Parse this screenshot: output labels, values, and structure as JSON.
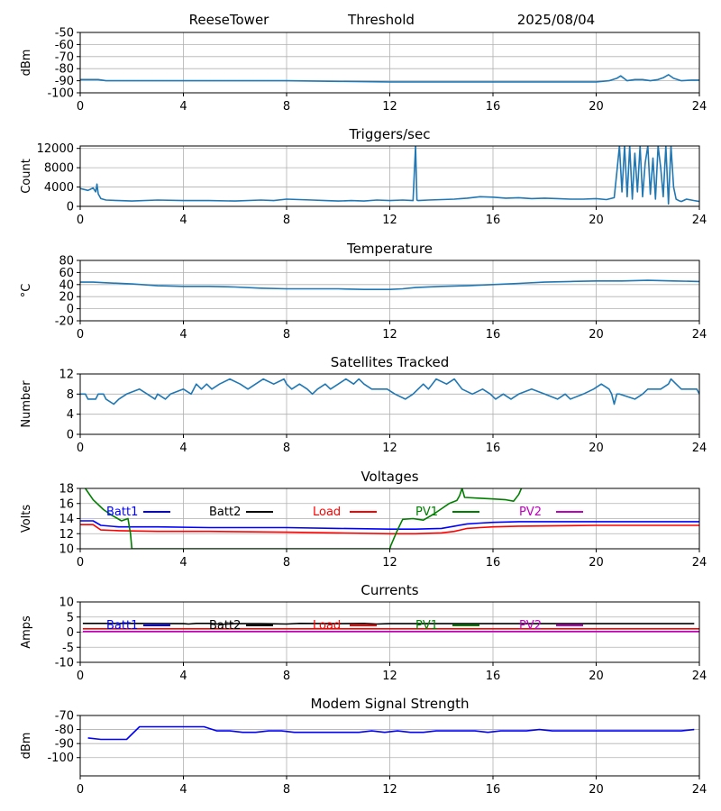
{
  "header": {
    "station": "ReeseTower",
    "mode": "Threshold",
    "date": "2025/08/04"
  },
  "colors": {
    "default": "#1f77b4",
    "grid": "#b0b0b0",
    "batt1": "#0000ff",
    "batt2": "#000000",
    "load": "#ff0000",
    "pv1": "#008000",
    "pv2": "#bf00bf"
  },
  "chart_data": [
    {
      "id": "threshold",
      "type": "line",
      "title": "",
      "xlabel": "",
      "ylabel": "dBm",
      "xlim": [
        0,
        24
      ],
      "xticks": [
        0,
        4,
        8,
        12,
        16,
        20,
        24
      ],
      "ylim": [
        -100,
        -50
      ],
      "yticks": [
        -100,
        -90,
        -80,
        -70,
        -60,
        -50
      ],
      "grid": true,
      "series": [
        {
          "color": "default",
          "x": [
            0,
            0.7,
            1,
            4,
            8,
            10,
            12,
            14,
            16,
            18,
            20,
            20.5,
            20.8,
            20.95,
            21.2,
            21.5,
            21.8,
            22.1,
            22.4,
            22.6,
            22.8,
            23.0,
            23.3,
            23.7,
            24
          ],
          "y": [
            -89,
            -89,
            -90,
            -90,
            -90,
            -90.5,
            -91,
            -91,
            -91,
            -91,
            -91,
            -90,
            -88,
            -86,
            -90,
            -89,
            -89,
            -90,
            -89,
            -87.5,
            -85,
            -88,
            -90,
            -89.5,
            -89.5
          ]
        }
      ]
    },
    {
      "id": "triggers",
      "type": "line",
      "title": "Triggers/sec",
      "xlabel": "",
      "ylabel": "Count",
      "xlim": [
        0,
        24
      ],
      "xticks": [
        0,
        4,
        8,
        12,
        16,
        20,
        24
      ],
      "ylim": [
        0,
        12500
      ],
      "yticks": [
        0,
        4000,
        8000,
        12000
      ],
      "grid": true,
      "series": [
        {
          "color": "default",
          "x": [
            0,
            0.3,
            0.5,
            0.6,
            0.65,
            0.7,
            0.8,
            1.0,
            1.5,
            2.0,
            3.0,
            4.0,
            5.0,
            6.0,
            7.0,
            7.5,
            8.0,
            8.5,
            9.0,
            9.5,
            10.0,
            10.5,
            11.0,
            11.5,
            12.0,
            12.5,
            12.9,
            13.0,
            13.05,
            13.1,
            13.5,
            14.0,
            14.5,
            15.0,
            15.5,
            16.0,
            16.5,
            17.0,
            17.5,
            18.0,
            18.5,
            19.0,
            19.5,
            20.0,
            20.4,
            20.7,
            20.8,
            20.9,
            21.0,
            21.1,
            21.2,
            21.3,
            21.4,
            21.5,
            21.6,
            21.7,
            21.8,
            21.9,
            22.0,
            22.1,
            22.2,
            22.3,
            22.4,
            22.5,
            22.6,
            22.7,
            22.8,
            22.9,
            23.0,
            23.1,
            23.2,
            23.3,
            23.5,
            23.8,
            24.0
          ],
          "y": [
            3700,
            3300,
            3800,
            3000,
            4600,
            2600,
            1600,
            1300,
            1200,
            1100,
            1300,
            1200,
            1200,
            1100,
            1300,
            1200,
            1500,
            1400,
            1300,
            1200,
            1100,
            1200,
            1100,
            1300,
            1200,
            1300,
            1200,
            12500,
            1300,
            1200,
            1300,
            1400,
            1500,
            1700,
            2000,
            1900,
            1700,
            1800,
            1600,
            1700,
            1600,
            1500,
            1500,
            1600,
            1400,
            1800,
            7000,
            12500,
            3000,
            12500,
            2000,
            12500,
            1500,
            11000,
            3000,
            12500,
            2000,
            9000,
            12500,
            2500,
            10000,
            1500,
            12500,
            8000,
            2000,
            12500,
            500,
            12500,
            4000,
            1500,
            1200,
            1000,
            1500,
            1200,
            1000
          ]
        }
      ]
    },
    {
      "id": "temperature",
      "type": "line",
      "title": "Temperature",
      "xlabel": "",
      "ylabel": "°C",
      "xlim": [
        0,
        24
      ],
      "xticks": [
        0,
        4,
        8,
        12,
        16,
        20,
        24
      ],
      "ylim": [
        -20,
        80
      ],
      "yticks": [
        -20,
        0,
        20,
        40,
        60,
        80
      ],
      "grid": true,
      "series": [
        {
          "color": "default",
          "x": [
            0,
            0.5,
            1,
            2,
            3,
            4,
            5,
            6,
            7,
            8,
            9,
            10,
            11,
            12,
            12.5,
            13,
            14,
            15,
            16,
            17,
            18,
            19,
            20,
            21,
            22,
            23,
            24
          ],
          "y": [
            44,
            44,
            43,
            41,
            38,
            37,
            37,
            36,
            34,
            33,
            33,
            33,
            32,
            32,
            33,
            35,
            37,
            38,
            40,
            42,
            44,
            45,
            46,
            46,
            47,
            46,
            45
          ]
        }
      ]
    },
    {
      "id": "satellites",
      "type": "line",
      "title": "Satellites Tracked",
      "xlabel": "",
      "ylabel": "Number",
      "xlim": [
        0,
        24
      ],
      "xticks": [
        0,
        4,
        8,
        12,
        16,
        20,
        24
      ],
      "ylim": [
        0,
        12
      ],
      "yticks": [
        0,
        4,
        8,
        12
      ],
      "grid": true,
      "series": [
        {
          "color": "default",
          "x": [
            0,
            0.2,
            0.3,
            0.6,
            0.7,
            0.9,
            1.0,
            1.3,
            1.5,
            1.8,
            2.3,
            2.6,
            2.9,
            3.0,
            3.3,
            3.5,
            4.0,
            4.3,
            4.5,
            4.7,
            4.9,
            5.1,
            5.4,
            5.8,
            6.2,
            6.5,
            6.8,
            7.1,
            7.5,
            7.9,
            8.0,
            8.2,
            8.5,
            8.8,
            9.0,
            9.2,
            9.5,
            9.7,
            10.0,
            10.3,
            10.6,
            10.8,
            11.0,
            11.3,
            11.6,
            11.9,
            12.2,
            12.6,
            12.9,
            13.3,
            13.5,
            13.8,
            14.2,
            14.5,
            14.8,
            15.2,
            15.6,
            15.9,
            16.1,
            16.4,
            16.7,
            17.0,
            17.5,
            18.0,
            18.5,
            18.8,
            19.0,
            19.5,
            19.9,
            20.2,
            20.5,
            20.6,
            20.7,
            20.8,
            20.9,
            21.5,
            21.8,
            22.0,
            22.5,
            22.8,
            22.9,
            23.1,
            23.3,
            23.9,
            24.0
          ],
          "y": [
            8,
            8,
            7,
            7,
            8,
            8,
            7,
            6,
            7,
            8,
            9,
            8,
            7,
            8,
            7,
            8,
            9,
            8,
            10,
            9,
            10,
            9,
            10,
            11,
            10,
            9,
            10,
            11,
            10,
            11,
            10,
            9,
            10,
            9,
            8,
            9,
            10,
            9,
            10,
            11,
            10,
            11,
            10,
            9,
            9,
            9,
            8,
            7,
            8,
            10,
            9,
            11,
            10,
            11,
            9,
            8,
            9,
            8,
            7,
            8,
            7,
            8,
            9,
            8,
            7,
            8,
            7,
            8,
            9,
            10,
            9,
            8,
            6,
            8,
            8,
            7,
            8,
            9,
            9,
            10,
            11,
            10,
            9,
            9,
            8
          ]
        }
      ]
    },
    {
      "id": "voltages",
      "type": "line",
      "title": "Voltages",
      "xlabel": "",
      "ylabel": "Volts",
      "xlim": [
        0,
        24
      ],
      "xticks": [
        0,
        4,
        8,
        12,
        16,
        20,
        24
      ],
      "ylim": [
        10,
        18
      ],
      "yticks": [
        10,
        12,
        14,
        16,
        18
      ],
      "grid": true,
      "series": [
        {
          "name": "Batt1",
          "color": "batt1",
          "x": [
            0,
            0.5,
            0.8,
            1.5,
            3,
            5,
            8,
            10,
            12,
            13,
            14,
            14.5,
            15,
            15.5,
            16,
            17,
            20,
            24
          ],
          "y": [
            13.7,
            13.7,
            13.1,
            12.9,
            12.9,
            12.8,
            12.8,
            12.7,
            12.6,
            12.6,
            12.7,
            13.0,
            13.3,
            13.4,
            13.5,
            13.6,
            13.6,
            13.6
          ]
        },
        {
          "name": "Batt2",
          "color": "batt2",
          "x": [],
          "y": []
        },
        {
          "name": "Load",
          "color": "load",
          "x": [
            0,
            0.5,
            0.8,
            1.5,
            3,
            5,
            8,
            10,
            12,
            13,
            14,
            14.5,
            15,
            15.5,
            16,
            17,
            20,
            24
          ],
          "y": [
            13.2,
            13.2,
            12.5,
            12.4,
            12.3,
            12.3,
            12.2,
            12.1,
            12.0,
            12.0,
            12.1,
            12.3,
            12.7,
            12.8,
            12.9,
            13.0,
            13.1,
            13.1
          ]
        },
        {
          "name": "PV1",
          "color": "pv1",
          "x": [
            0.2,
            0.5,
            0.9,
            1.2,
            1.6,
            1.85,
            1.95,
            2.0,
            12.0,
            12.05,
            12.3,
            12.5,
            12.9,
            13.3,
            13.7,
            14.0,
            14.3,
            14.6,
            14.7,
            14.8,
            14.9,
            15.5,
            16.0,
            16.5,
            16.8,
            17.0,
            17.1
          ],
          "y": [
            18,
            16.5,
            15.2,
            14.5,
            13.7,
            14.0,
            12.0,
            10,
            10,
            10.5,
            12.5,
            13.9,
            14.0,
            13.8,
            14.6,
            15.3,
            16.0,
            16.4,
            17.0,
            18,
            16.8,
            16.7,
            16.6,
            16.5,
            16.3,
            17.2,
            18
          ]
        },
        {
          "name": "PV2",
          "color": "pv2",
          "x": [],
          "y": []
        }
      ]
    },
    {
      "id": "currents",
      "type": "line",
      "title": "Currents",
      "xlabel": "",
      "ylabel": "Amps",
      "xlim": [
        0,
        24
      ],
      "xticks": [
        0,
        4,
        8,
        12,
        16,
        20,
        24
      ],
      "ylim": [
        -10,
        10
      ],
      "yticks": [
        -10,
        -5,
        0,
        5,
        10
      ],
      "grid": true,
      "series": [
        {
          "name": "Batt1",
          "color": "batt1",
          "x": [],
          "y": []
        },
        {
          "name": "Batt2",
          "color": "batt2",
          "x": [
            0.1,
            2,
            4,
            4.2,
            4.5,
            5,
            5.5,
            6,
            7,
            8,
            8.5,
            10,
            11,
            11.5,
            12,
            13,
            14,
            16,
            18,
            20,
            22,
            23.8
          ],
          "y": [
            2.9,
            2.9,
            2.8,
            2.7,
            2.9,
            2.9,
            2.6,
            2.8,
            2.8,
            2.7,
            2.9,
            2.8,
            2.9,
            2.7,
            2.8,
            2.8,
            2.8,
            2.8,
            2.8,
            2.8,
            2.8,
            2.8
          ]
        },
        {
          "name": "Load",
          "color": "load",
          "x": [
            0.1,
            24
          ],
          "y": [
            1.1,
            1.1
          ]
        },
        {
          "name": "PV1",
          "color": "pv1",
          "x": [],
          "y": []
        },
        {
          "name": "PV2",
          "color": "pv2",
          "x": [
            0.1,
            24
          ],
          "y": [
            0.2,
            0.2
          ]
        }
      ]
    },
    {
      "id": "modem",
      "type": "line",
      "title": "Modem Signal Strength",
      "xlabel": "",
      "ylabel": "dBm",
      "xlim": [
        0,
        24
      ],
      "xticks": [
        0,
        4,
        8,
        12,
        16,
        20,
        24
      ],
      "ylim": [
        -113,
        -70
      ],
      "yticks": [
        -100,
        -90,
        -80,
        -70
      ],
      "grid": true,
      "series": [
        {
          "color": "batt1",
          "x": [
            0.3,
            0.8,
            1.8,
            2.3,
            4.8,
            5.3,
            5.8,
            6.3,
            6.8,
            7.3,
            7.8,
            8.3,
            8.8,
            9.3,
            9.8,
            10.3,
            10.8,
            11.3,
            11.8,
            12.3,
            12.8,
            13.3,
            13.8,
            14.3,
            14.8,
            15.3,
            15.8,
            16.3,
            16.8,
            17.3,
            17.8,
            18.3,
            18.8,
            19.3,
            19.8,
            20.3,
            20.8,
            21.3,
            21.8,
            22.3,
            22.8,
            23.3,
            23.8
          ],
          "y": [
            -86,
            -87,
            -87,
            -78,
            -78,
            -81,
            -81,
            -82,
            -82,
            -81,
            -81,
            -82,
            -82,
            -82,
            -82,
            -82,
            -82,
            -81,
            -82,
            -81,
            -82,
            -82,
            -81,
            -81,
            -81,
            -81,
            -82,
            -81,
            -81,
            -81,
            -80,
            -81,
            -81,
            -81,
            -81,
            -81,
            -81,
            -81,
            -81,
            -81,
            -81,
            -81,
            -80
          ]
        }
      ]
    }
  ]
}
